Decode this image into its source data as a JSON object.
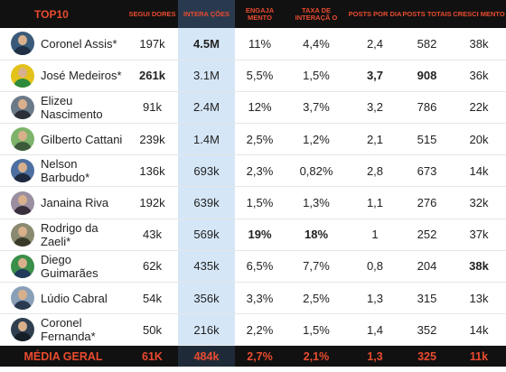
{
  "header": {
    "title": "TOP10",
    "columns": [
      "SEGUI DORES",
      "INTERA ÇÕES",
      "ENGAJA MENTO",
      "TAXA DE INTERAÇÃ O",
      "POSTS POR DIA",
      "POSTS TOTAIS",
      "CRESCI MENTO"
    ]
  },
  "rows": [
    {
      "name": "Coronel Assis*",
      "seguidores": "197k",
      "interacoes": "4.5M",
      "engajamento": "11%",
      "taxa": "4,4%",
      "posts_dia": "2,4",
      "posts_totais": "582",
      "crescimento": "38k",
      "avatar_bg": "#3a5a7a",
      "avatar_body": "#1f2f45"
    },
    {
      "name": "José Medeiros*",
      "seguidores": "261k",
      "interacoes": "3.1M",
      "engajamento": "5,5%",
      "taxa": "1,5%",
      "posts_dia": "3,7",
      "posts_totais": "908",
      "crescimento": "36k",
      "avatar_bg": "#e3c219",
      "avatar_body": "#2f8a3c"
    },
    {
      "name": "Elizeu Nascimento",
      "seguidores": "91k",
      "interacoes": "2.4M",
      "engajamento": "12%",
      "taxa": "3,7%",
      "posts_dia": "3,2",
      "posts_totais": "786",
      "crescimento": "22k",
      "avatar_bg": "#6b7a88",
      "avatar_body": "#2a2f38"
    },
    {
      "name": "Gilberto Cattani",
      "seguidores": "239k",
      "interacoes": "1.4M",
      "engajamento": "2,5%",
      "taxa": "1,2%",
      "posts_dia": "2,1",
      "posts_totais": "515",
      "crescimento": "20k",
      "avatar_bg": "#7db36a",
      "avatar_body": "#3c5a3a"
    },
    {
      "name": "Nelson Barbudo*",
      "seguidores": "136k",
      "interacoes": "693k",
      "engajamento": "2,3%",
      "taxa": "0,82%",
      "posts_dia": "2,8",
      "posts_totais": "673",
      "crescimento": "14k",
      "avatar_bg": "#4d6fa0",
      "avatar_body": "#1e2a3f"
    },
    {
      "name": "Janaina Riva",
      "seguidores": "192k",
      "interacoes": "639k",
      "engajamento": "1,5%",
      "taxa": "1,3%",
      "posts_dia": "1,1",
      "posts_totais": "276",
      "crescimento": "32k",
      "avatar_bg": "#9b8ea0",
      "avatar_body": "#3a2f3d"
    },
    {
      "name": "Rodrigo da Zaeli*",
      "seguidores": "43k",
      "interacoes": "569k",
      "engajamento": "19%",
      "taxa": "18%",
      "posts_dia": "1",
      "posts_totais": "252",
      "crescimento": "37k",
      "avatar_bg": "#8a8a70",
      "avatar_body": "#3a3a2a"
    },
    {
      "name": "Diego Guimarães",
      "seguidores": "62k",
      "interacoes": "435k",
      "engajamento": "6,5%",
      "taxa": "7,7%",
      "posts_dia": "0,8",
      "posts_totais": "204",
      "crescimento": "38k",
      "avatar_bg": "#3a8f4a",
      "avatar_body": "#1f3a5a"
    },
    {
      "name": "Lúdio Cabral",
      "seguidores": "54k",
      "interacoes": "356k",
      "engajamento": "3,3%",
      "taxa": "2,5%",
      "posts_dia": "1,3",
      "posts_totais": "315",
      "crescimento": "13k",
      "avatar_bg": "#8aa0b8",
      "avatar_body": "#2a3a50"
    },
    {
      "name": "Coronel Fernanda*",
      "seguidores": "50k",
      "interacoes": "216k",
      "engajamento": "2,2%",
      "taxa": "1,5%",
      "posts_dia": "1,4",
      "posts_totais": "352",
      "crescimento": "14k",
      "avatar_bg": "#2f3f4f",
      "avatar_body": "#151d26"
    }
  ],
  "footer": {
    "label": "MÉDIA GERAL",
    "seguidores": "61K",
    "interacoes": "484k",
    "engajamento": "2,7%",
    "taxa": "2,1%",
    "posts_dia": "1,3",
    "posts_totais": "325",
    "crescimento": "11k"
  },
  "bold_cells": [
    {
      "row": 0,
      "field": "interacoes"
    },
    {
      "row": 1,
      "field": "seguidores"
    },
    {
      "row": 1,
      "field": "posts_dia"
    },
    {
      "row": 1,
      "field": "posts_totais"
    },
    {
      "row": 6,
      "field": "engajamento"
    },
    {
      "row": 6,
      "field": "taxa"
    },
    {
      "row": 7,
      "field": "crescimento"
    }
  ],
  "colors": {
    "header_bg": "#111111",
    "header_text": "#e94b2f",
    "highlight_column": "#d5e6f7"
  }
}
